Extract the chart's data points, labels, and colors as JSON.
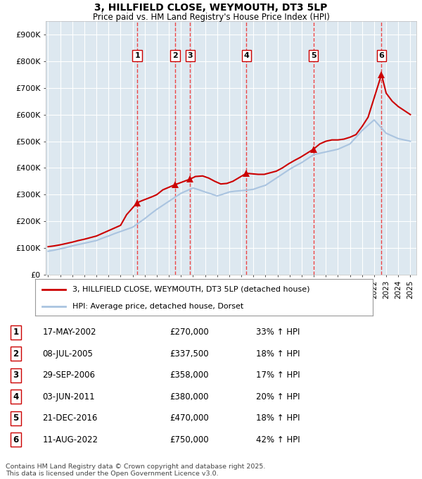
{
  "title": "3, HILLFIELD CLOSE, WEYMOUTH, DT3 5LP",
  "subtitle": "Price paid vs. HM Land Registry's House Price Index (HPI)",
  "sales": [
    {
      "num": 1,
      "date": "17-MAY-2002",
      "price": 270000,
      "year": 2002.38
    },
    {
      "num": 2,
      "date": "08-JUL-2005",
      "price": 337500,
      "year": 2005.52
    },
    {
      "num": 3,
      "date": "29-SEP-2006",
      "price": 358000,
      "year": 2006.75
    },
    {
      "num": 4,
      "date": "03-JUN-2011",
      "price": 380000,
      "year": 2011.42
    },
    {
      "num": 5,
      "date": "21-DEC-2016",
      "price": 470000,
      "year": 2016.97
    },
    {
      "num": 6,
      "date": "11-AUG-2022",
      "price": 750000,
      "year": 2022.61
    }
  ],
  "sale_hpi_pct": [
    "33% ↑ HPI",
    "18% ↑ HPI",
    "17% ↑ HPI",
    "20% ↑ HPI",
    "18% ↑ HPI",
    "42% ↑ HPI"
  ],
  "hpi_line_color": "#aac4e0",
  "property_line_color": "#cc0000",
  "sale_marker_color": "#cc0000",
  "vline_color": "#ee3333",
  "background_color": "#ffffff",
  "plot_bg_color": "#dde8f0",
  "grid_color": "#ffffff",
  "ylim": [
    0,
    950000
  ],
  "xlim": [
    1994.8,
    2025.5
  ],
  "yticks": [
    0,
    100000,
    200000,
    300000,
    400000,
    500000,
    600000,
    700000,
    800000,
    900000
  ],
  "legend_label_property": "3, HILLFIELD CLOSE, WEYMOUTH, DT3 5LP (detached house)",
  "legend_label_hpi": "HPI: Average price, detached house, Dorset",
  "footer": "Contains HM Land Registry data © Crown copyright and database right 2025.\nThis data is licensed under the Open Government Licence v3.0.",
  "hpi_years": [
    1995.0,
    1995.5,
    1996.0,
    1996.5,
    1997.0,
    1997.5,
    1998.0,
    1998.5,
    1999.0,
    1999.5,
    2000.0,
    2000.5,
    2001.0,
    2001.5,
    2002.0,
    2002.5,
    2003.0,
    2003.5,
    2004.0,
    2004.5,
    2005.0,
    2005.5,
    2006.0,
    2006.5,
    2007.0,
    2007.5,
    2008.0,
    2008.5,
    2009.0,
    2009.5,
    2010.0,
    2010.5,
    2011.0,
    2011.5,
    2012.0,
    2012.5,
    2013.0,
    2013.5,
    2014.0,
    2014.5,
    2015.0,
    2015.5,
    2016.0,
    2016.5,
    2017.0,
    2017.5,
    2018.0,
    2018.5,
    2019.0,
    2019.5,
    2020.0,
    2020.5,
    2021.0,
    2021.5,
    2022.0,
    2022.5,
    2023.0,
    2023.5,
    2024.0,
    2024.5,
    2025.0
  ],
  "hpi_values": [
    88000,
    92000,
    97000,
    102000,
    108000,
    113000,
    118000,
    123000,
    128000,
    137000,
    145000,
    154000,
    162000,
    170000,
    178000,
    194000,
    210000,
    228000,
    245000,
    260000,
    275000,
    290000,
    305000,
    315000,
    325000,
    318000,
    310000,
    303000,
    295000,
    302000,
    310000,
    313000,
    315000,
    317000,
    320000,
    328000,
    335000,
    350000,
    365000,
    380000,
    395000,
    408000,
    420000,
    435000,
    450000,
    455000,
    460000,
    465000,
    470000,
    480000,
    490000,
    515000,
    540000,
    560000,
    580000,
    555000,
    530000,
    520000,
    510000,
    505000,
    500000
  ],
  "property_years": [
    1995.0,
    1995.5,
    1996.0,
    1996.5,
    1997.0,
    1997.5,
    1998.0,
    1998.5,
    1999.0,
    1999.5,
    2000.0,
    2000.5,
    2001.0,
    2001.5,
    2002.38,
    2002.8,
    2003.2,
    2003.6,
    2004.0,
    2004.5,
    2005.52,
    2006.75,
    2007.2,
    2007.8,
    2008.3,
    2008.8,
    2009.3,
    2009.8,
    2010.3,
    2011.42,
    2011.9,
    2012.4,
    2012.9,
    2013.4,
    2013.9,
    2014.4,
    2014.9,
    2015.4,
    2015.9,
    2016.97,
    2017.5,
    2018.0,
    2018.5,
    2019.0,
    2019.5,
    2020.0,
    2020.5,
    2021.0,
    2021.5,
    2022.61,
    2023.0,
    2023.5,
    2024.0,
    2024.5,
    2025.0
  ],
  "property_values": [
    105000,
    108000,
    112000,
    117000,
    122000,
    128000,
    133000,
    139000,
    145000,
    155000,
    165000,
    175000,
    185000,
    225000,
    270000,
    278000,
    285000,
    292000,
    300000,
    318000,
    337500,
    358000,
    368000,
    370000,
    362000,
    350000,
    340000,
    342000,
    350000,
    380000,
    378000,
    376000,
    376000,
    382000,
    388000,
    400000,
    415000,
    428000,
    440000,
    470000,
    490000,
    500000,
    505000,
    505000,
    508000,
    515000,
    525000,
    555000,
    590000,
    750000,
    680000,
    650000,
    630000,
    615000,
    600000
  ]
}
